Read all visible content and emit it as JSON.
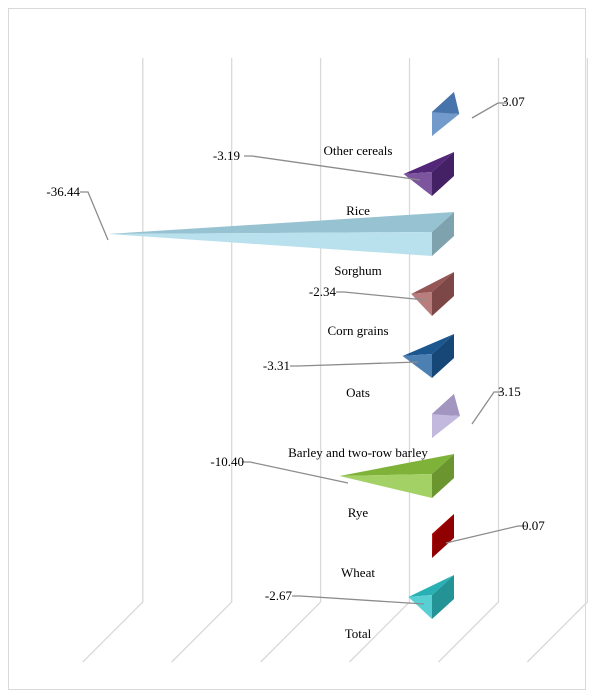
{
  "chart_data": {
    "type": "bar",
    "orientation": "horizontal-3d-cone",
    "title": "",
    "xlabel": "",
    "ylabel": "",
    "legend": "none",
    "grid": true,
    "xlim": [
      -40,
      10
    ],
    "categories": [
      "Other cereals",
      "Rice",
      "Sorghum",
      "Corn grains",
      "Oats",
      "Barley and two-row barley",
      "Rye",
      "Wheat",
      "Total"
    ],
    "values": [
      3.07,
      -3.19,
      -36.44,
      -2.34,
      -3.31,
      3.15,
      -10.4,
      0.07,
      -2.67
    ],
    "value_labels": [
      "3.07",
      "-3.19",
      "-36.44",
      "-2.34",
      "-3.31",
      "3.15",
      "-10.40",
      "0.07",
      "-2.67"
    ],
    "colors": [
      "#4f81bd",
      "#5b2a86",
      "#a8d8e8",
      "#a65e5e",
      "#1f5f9f",
      "#b4a7d6",
      "#8dc63f",
      "#c00000",
      "#2ec4c8"
    ]
  }
}
